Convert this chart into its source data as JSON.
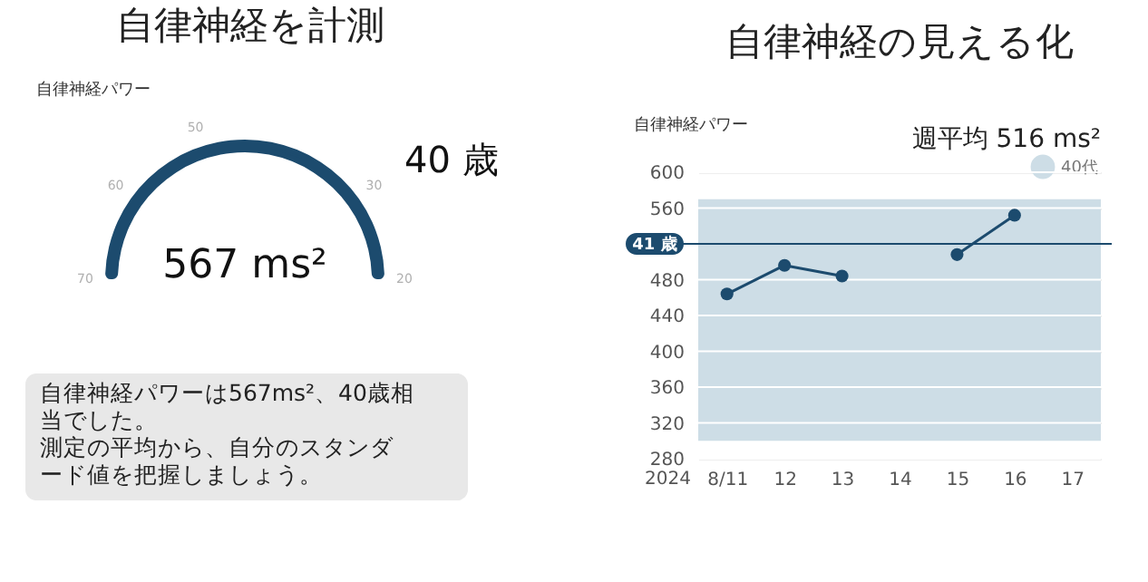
{
  "chart_data": [
    {
      "type": "other",
      "title": "自律神経を計測",
      "subtitle": "自律神経パワー",
      "color": "#1c4b6e",
      "annotations": [
        "40 歳",
        "567 ms²",
        "自律神経パワーは567ms²、40歳相当でした。",
        "測定の平均から、自分のスタンダード値を把握しましょう。",
        "70",
        "60",
        "50",
        "30",
        "20"
      ]
    },
    {
      "type": "line",
      "title": "自律神経の見える化",
      "ylabel": "自律神経パワー",
      "categories": [
        "8/11",
        "12",
        "13",
        "14",
        "15",
        "16",
        "17"
      ],
      "series": [
        {
          "color": "#1c4b6e",
          "values": [
            464,
            496,
            484,
            null,
            508,
            552,
            null
          ]
        }
      ],
      "ylim": [
        280,
        600
      ],
      "yticks": [
        280,
        320,
        360,
        400,
        440,
        480,
        560,
        600
      ],
      "grid": "y",
      "marker": "circle",
      "line_style": "solid",
      "legend": "top right",
      "ref_lines": [
        {
          "axis": "y",
          "value": 520,
          "label": "41 歳",
          "color": "#1c4b6e"
        }
      ],
      "bands": [
        {
          "axis": "y",
          "from": 300,
          "to": 570,
          "label": "40代",
          "color": "#cddde6"
        }
      ],
      "annotations": [
        "週平均 516 ms²",
        "2024"
      ]
    }
  ]
}
